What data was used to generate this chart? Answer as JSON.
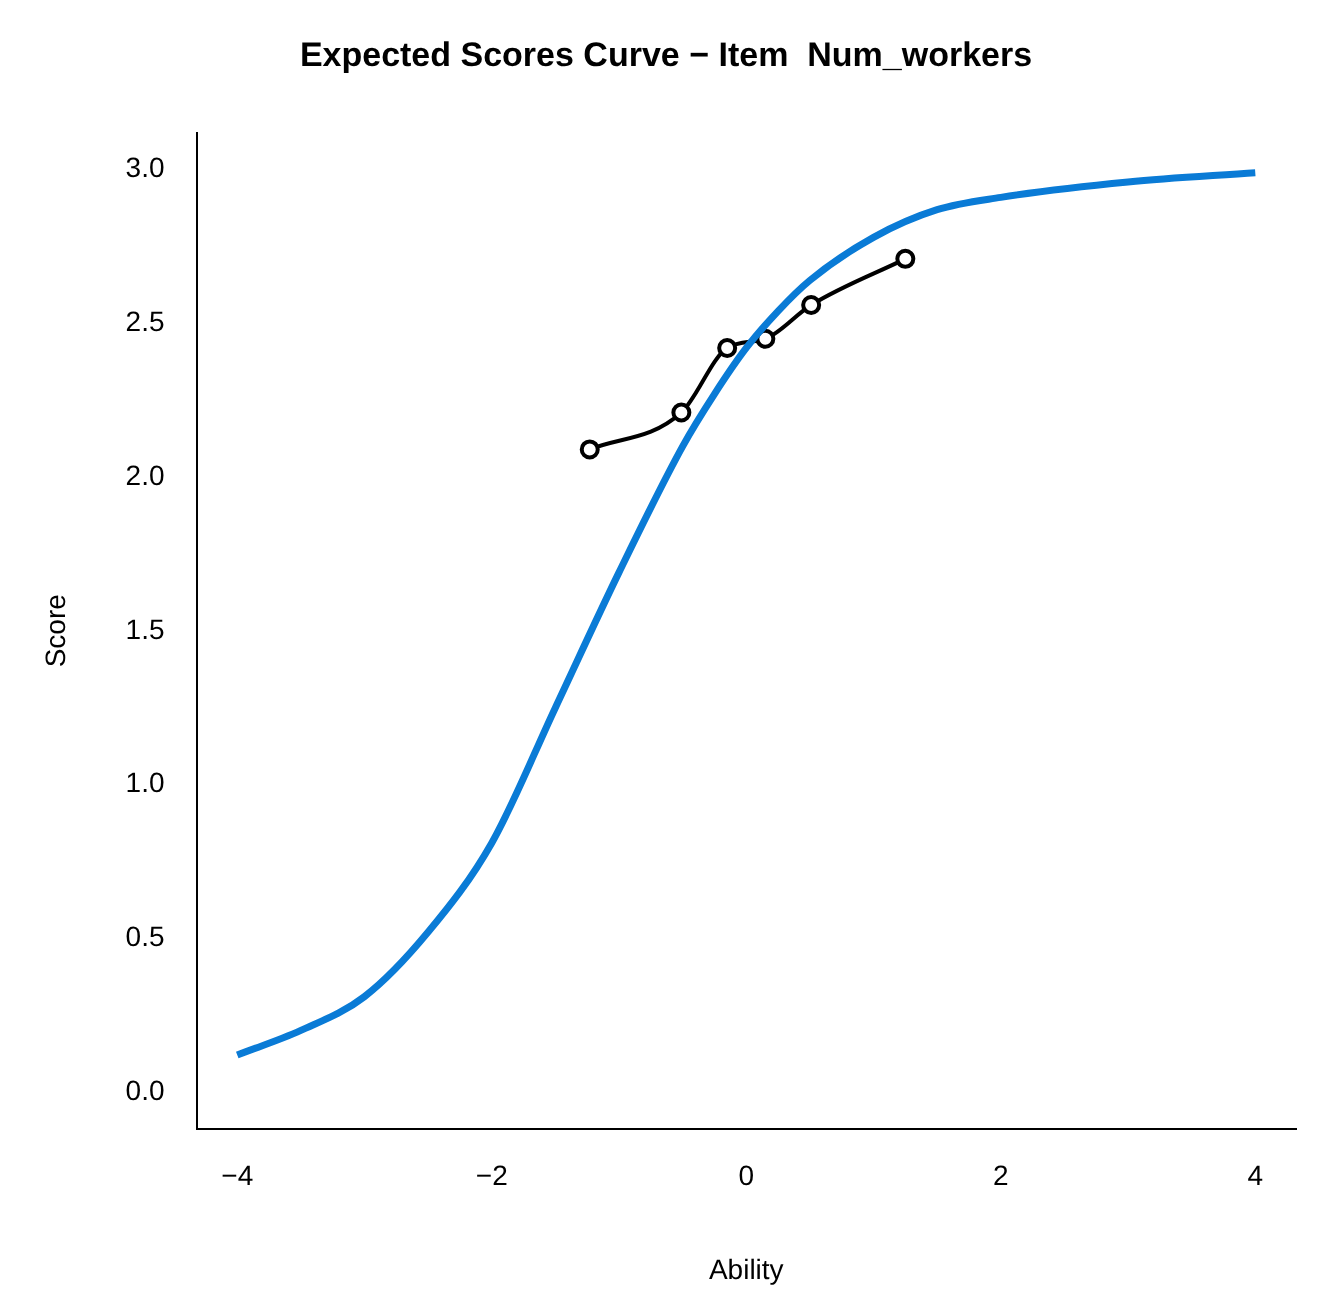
{
  "chart_data": {
    "type": "line",
    "title": "Expected Scores Curve − Item  Num_workers",
    "xlabel": "Ability",
    "ylabel": "Score",
    "xlim": [
      -4.32,
      4.32
    ],
    "ylim": [
      -0.12,
      3.12
    ],
    "xticks": [
      {
        "value": -4,
        "label": "−4"
      },
      {
        "value": -2,
        "label": "−2"
      },
      0,
      2,
      4
    ],
    "yticks": [
      {
        "value": 0,
        "label": "0.0"
      },
      {
        "value": 0.5,
        "label": "0.5"
      },
      {
        "value": 1,
        "label": "1.0"
      },
      {
        "value": 1.5,
        "label": "1.5"
      },
      {
        "value": 2,
        "label": "2.0"
      },
      {
        "value": 2.5,
        "label": "2.5"
      },
      {
        "value": 3,
        "label": "3.0"
      }
    ],
    "grid": false,
    "legend": false,
    "series": [
      {
        "color": "#0a7bd6",
        "marker": "none",
        "x": [
          -4,
          -3.5,
          -3,
          -2.5,
          -2,
          -1.5,
          -1,
          -0.5,
          -0.25,
          0,
          0.25,
          0.5,
          1,
          1.5,
          2,
          3,
          4
        ],
        "values": [
          0.12,
          0.2,
          0.31,
          0.52,
          0.81,
          1.25,
          1.69,
          2.1,
          2.27,
          2.42,
          2.54,
          2.64,
          2.78,
          2.87,
          2.91,
          2.96,
          2.99
        ]
      },
      {
        "color": "#000000",
        "marker": "circle",
        "x": [
          -1.23,
          -0.51,
          -0.15,
          0.15,
          0.51,
          1.25
        ],
        "values": [
          2.09,
          2.21,
          2.42,
          2.45,
          2.56,
          2.71
        ]
      }
    ]
  }
}
